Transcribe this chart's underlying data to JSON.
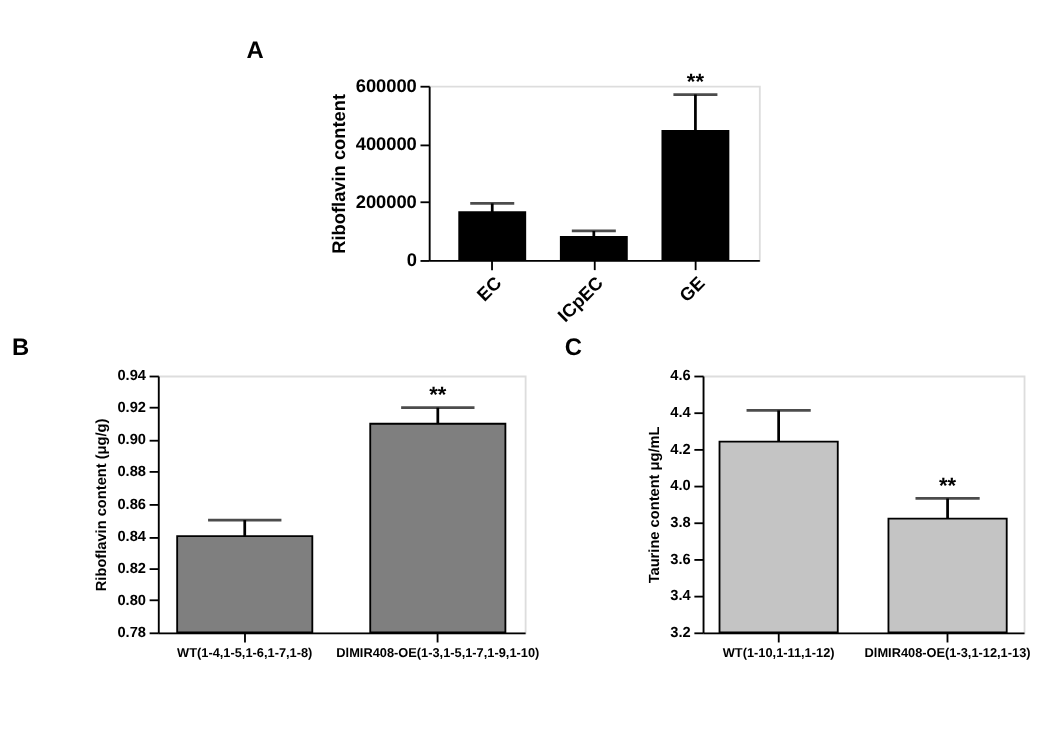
{
  "chart_data": [
    {
      "type": "bar",
      "title": "A",
      "ylabel": "Riboflavin content",
      "categories": [
        "EC",
        "ICpEC",
        "GE"
      ],
      "values": [
        165000,
        80000,
        445000
      ],
      "errors": [
        [
          165000,
          195000
        ],
        [
          80000,
          100000
        ],
        [
          445000,
          570000
        ]
      ],
      "color": "#000000",
      "ylim": [
        0,
        600000
      ],
      "yticks": [
        0,
        200000,
        400000,
        600000
      ],
      "grid": false,
      "annotations": [
        {
          "text": "**",
          "x": "GE",
          "y": 570000
        }
      ]
    },
    {
      "type": "bar",
      "title": "B",
      "ylabel": "Riboflavin content (μg/g)",
      "categories": [
        "WT(1-4,1-5,1-6,1-7,1-8)",
        "DlMIR408-OE(1-3,1-5,1-7,1-9,1-10)"
      ],
      "values": [
        0.84,
        0.91
      ],
      "errors": [
        [
          0.84,
          0.85
        ],
        [
          0.91,
          0.92
        ]
      ],
      "color": "#7f7f7f",
      "ylim": [
        0.78,
        0.94
      ],
      "yticks": [
        0.78,
        {
          "value": 0.8,
          "label": "0.80"
        },
        0.82,
        0.84,
        0.86,
        0.88,
        {
          "value": 0.9,
          "label": "0.90"
        },
        0.92,
        0.94
      ],
      "grid": false,
      "annotations": [
        {
          "text": "**",
          "x": "DlMIR408-OE(1-3,1-5,1-7,1-9,1-10)",
          "y": 0.92
        }
      ]
    },
    {
      "type": "bar",
      "title": "C",
      "ylabel": "Taurine content μg/mL",
      "categories": [
        "WT(1-10,1-11,1-12)",
        "DlMIR408-OE(1-3,1-12,1-13)"
      ],
      "values": [
        4.24,
        3.82
      ],
      "errors": [
        [
          4.24,
          4.41
        ],
        [
          3.82,
          3.93
        ]
      ],
      "color": "#c4c4c4",
      "ylim": [
        3.2,
        4.6
      ],
      "yticks": [
        3.2,
        3.4,
        3.6,
        3.8,
        {
          "value": 4,
          "label": "4.0"
        },
        4.2,
        4.4,
        4.6
      ],
      "grid": false,
      "annotations": [
        {
          "text": "**",
          "x": "DlMIR408-OE(1-3,1-12,1-13)",
          "y": 3.93
        }
      ]
    }
  ]
}
